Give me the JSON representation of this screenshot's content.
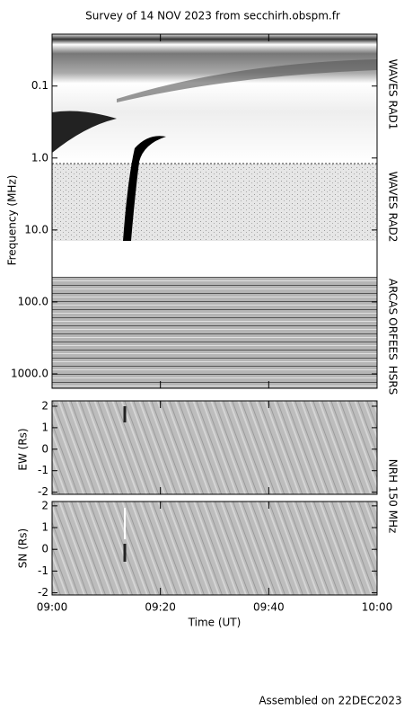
{
  "chart_data": [
    {
      "type": "heatmap",
      "title": "Survey of 14 NOV 2023 from secchirh.obspm.fr",
      "ylabel": "Frequency (MHz)",
      "log_scale": true,
      "inverted": true,
      "ylim": [
        0.019,
        1585
      ],
      "yticks": [
        0.1,
        {
          "value": 1,
          "label": "1.0"
        },
        {
          "value": 10,
          "label": "10.0"
        },
        {
          "value": 100,
          "label": "100.0"
        },
        {
          "value": 1000,
          "label": "1000.0"
        }
      ],
      "annotations": [
        "WAVES RAD1",
        "WAVES RAD2",
        "ARCAS",
        "ORFEES",
        "HSRS"
      ]
    },
    {
      "type": "heatmap",
      "ylabel": "EW (Rs)",
      "ylim": [
        -2.1,
        2.25
      ],
      "yticks": [
        -2,
        -1,
        0,
        1,
        2
      ],
      "annotations": [
        "NRH 150 MHz"
      ]
    },
    {
      "type": "heatmap",
      "ylabel": "SN (Rs)",
      "xlabel": "Time (UT)",
      "ylim": [
        -2.1,
        2.2
      ],
      "yticks": [
        -2,
        -1,
        0,
        1,
        2
      ],
      "xlim": [
        "09:00",
        "10:00"
      ],
      "xticks": [
        "09:00",
        "09:20",
        "09:40",
        "10:00"
      ]
    }
  ],
  "footer": "Assembled on 22DEC2023"
}
